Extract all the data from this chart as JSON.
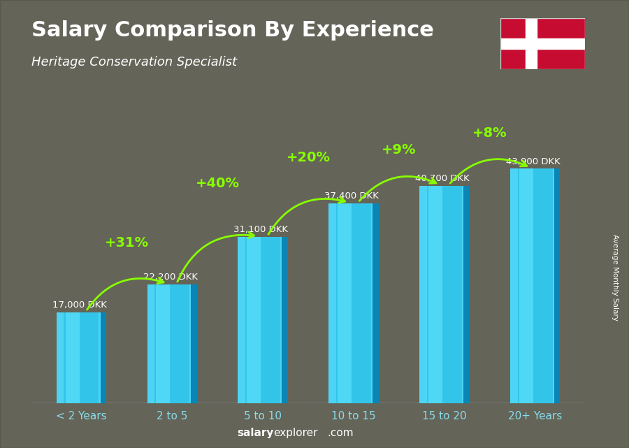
{
  "title": "Salary Comparison By Experience",
  "subtitle": "Heritage Conservation Specialist",
  "categories": [
    "< 2 Years",
    "2 to 5",
    "5 to 10",
    "10 to 15",
    "15 to 20",
    "20+ Years"
  ],
  "values": [
    17000,
    22200,
    31100,
    37400,
    40700,
    43900
  ],
  "value_labels": [
    "17,000 DKK",
    "22,200 DKK",
    "31,100 DKK",
    "37,400 DKK",
    "40,700 DKK",
    "43,900 DKK"
  ],
  "pct_changes": [
    "+31%",
    "+40%",
    "+20%",
    "+9%",
    "+8%"
  ],
  "bar_color_main": "#1ab8e0",
  "bar_color_light": "#4dd4f4",
  "bar_color_dark": "#0077aa",
  "bar_color_top": "#00cfff",
  "ylabel": "Average Monthly Salary",
  "footer_bold": "salary",
  "footer_normal": "explorer",
  "footer_com": ".com",
  "title_color": "#ffffff",
  "subtitle_color": "#ffffff",
  "label_color": "#ffffff",
  "pct_color": "#88ff00",
  "arrow_color": "#88ff00",
  "ylim_max": 52000,
  "bg_color": "#aaaaaa",
  "overlay_color": "#555555",
  "overlay_alpha": 0.45
}
